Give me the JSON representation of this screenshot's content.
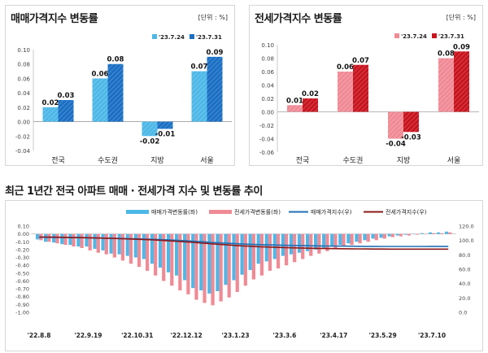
{
  "charts": {
    "sale": {
      "title": "매매가격지수 변동률",
      "unit": "[단위 : %]"
    },
    "jeonse": {
      "title": "전세가격지수 변동률",
      "unit": "[단위 : %]"
    },
    "trend": {
      "title": "최근 1년간 전국 아파트 매매 · 전세가격 지수 및 변동률 추이"
    }
  },
  "colors": {
    "sale_prev": "#4db8e8",
    "sale_curr": "#1a6fc4",
    "jeonse_prev": "#f08a95",
    "jeonse_curr": "#c8141e",
    "sale_index": "#1f6fb5",
    "jeonse_index": "#8b1a1a"
  },
  "chart_data": [
    {
      "type": "bar",
      "title": "매매가격지수 변동률",
      "categories": [
        "전국",
        "수도권",
        "지방",
        "서울"
      ],
      "series": [
        {
          "name": "'23.7.24",
          "values": [
            0.02,
            0.06,
            -0.02,
            0.07
          ]
        },
        {
          "name": "'23.7.31",
          "values": [
            0.03,
            0.08,
            -0.01,
            0.09
          ]
        }
      ],
      "ylim": [
        -0.04,
        0.1
      ],
      "yticks": [
        "-0.04",
        "-0.02",
        "0.00",
        "0.02",
        "0.04",
        "0.06",
        "0.08",
        "0.10"
      ],
      "data_labels": [
        [
          "0.02",
          "0.06",
          "-0.02",
          "0.07"
        ],
        [
          "0.03",
          "0.08",
          "-0.01",
          "0.09"
        ]
      ],
      "legend": "top-right"
    },
    {
      "type": "bar",
      "title": "전세가격지수 변동률",
      "categories": [
        "전국",
        "수도권",
        "지방",
        "서울"
      ],
      "series": [
        {
          "name": "'23.7.24",
          "values": [
            0.01,
            0.06,
            -0.04,
            0.08
          ]
        },
        {
          "name": "'23.7.31",
          "values": [
            0.02,
            0.07,
            -0.03,
            0.09
          ]
        }
      ],
      "ylim": [
        -0.06,
        0.1
      ],
      "yticks": [
        "-0.06",
        "-0.04",
        "-0.02",
        "0.00",
        "0.02",
        "0.04",
        "0.06",
        "0.08",
        "0.10"
      ],
      "data_labels": [
        [
          "0.01",
          "0.06",
          "-0.04",
          "0.08"
        ],
        [
          "0.02",
          "0.07",
          "-0.03",
          "0.09"
        ]
      ],
      "legend": "top-right"
    },
    {
      "type": "bar",
      "title": "최근 1년간 전국 아파트 매매 · 전세가격 지수 및 변동률 추이",
      "legend_items": [
        "매매가격변동률(좌)",
        "전세가격변동률(좌)",
        "매매가격지수(우)",
        "전세가격지수(우)"
      ],
      "ylim_left": [
        -1.0,
        0.1
      ],
      "yticks_left": [
        "-1.00",
        "-0.90",
        "-0.80",
        "-0.70",
        "-0.60",
        "-0.50",
        "-0.40",
        "-0.30",
        "-0.20",
        "-0.10",
        "0.00",
        "0.10"
      ],
      "ylim_right": [
        0,
        120
      ],
      "yticks_right": [
        "0.0",
        "20.0",
        "40.0",
        "60.0",
        "80.0",
        "100.0",
        "120.0"
      ],
      "xticks": [
        "'22.8.8",
        "'22.9.19",
        "'22.10.31",
        "'22.12.12",
        "'23.1.23",
        "'23.3.6",
        "'23.4.17",
        "'23.5.29",
        "'23.7.10"
      ],
      "sale_change": [
        -0.07,
        -0.1,
        -0.11,
        -0.13,
        -0.14,
        -0.16,
        -0.16,
        -0.19,
        -0.21,
        -0.25,
        -0.26,
        -0.28,
        -0.3,
        -0.32,
        -0.38,
        -0.43,
        -0.49,
        -0.53,
        -0.59,
        -0.69,
        -0.72,
        -0.76,
        -0.73,
        -0.65,
        -0.59,
        -0.52,
        -0.46,
        -0.38,
        -0.35,
        -0.32,
        -0.28,
        -0.26,
        -0.24,
        -0.22,
        -0.2,
        -0.18,
        -0.16,
        -0.14,
        -0.12,
        -0.1,
        -0.08,
        -0.06,
        -0.05,
        -0.03,
        -0.02,
        -0.01,
        0.0,
        0.01,
        0.02,
        0.02,
        0.03
      ],
      "jeonse_change": [
        -0.08,
        -0.1,
        -0.12,
        -0.14,
        -0.16,
        -0.18,
        -0.21,
        -0.24,
        -0.26,
        -0.3,
        -0.34,
        -0.38,
        -0.42,
        -0.47,
        -0.53,
        -0.6,
        -0.66,
        -0.72,
        -0.77,
        -0.84,
        -0.88,
        -0.91,
        -0.86,
        -0.81,
        -0.74,
        -0.66,
        -0.58,
        -0.53,
        -0.47,
        -0.44,
        -0.4,
        -0.36,
        -0.32,
        -0.28,
        -0.25,
        -0.22,
        -0.19,
        -0.16,
        -0.14,
        -0.12,
        -0.1,
        -0.08,
        -0.06,
        -0.04,
        -0.03,
        -0.02,
        -0.01,
        0.0,
        0.01,
        0.01,
        0.02
      ],
      "sale_index": [
        104.5,
        104.4,
        104.3,
        104.2,
        104.0,
        103.9,
        103.7,
        103.5,
        103.3,
        103.0,
        102.8,
        102.5,
        102.2,
        101.9,
        101.5,
        101.1,
        100.6,
        100.1,
        99.5,
        98.8,
        98.1,
        97.4,
        96.7,
        96.1,
        95.5,
        95.0,
        94.6,
        94.2,
        93.9,
        93.6,
        93.3,
        93.1,
        92.9,
        92.7,
        92.5,
        92.3,
        92.2,
        92.1,
        92.0,
        91.9,
        91.8,
        91.8,
        91.7,
        91.7,
        91.7,
        91.7,
        91.7,
        91.7,
        91.8,
        91.8,
        91.8
      ],
      "jeonse_index": [
        104.8,
        104.7,
        104.6,
        104.4,
        104.2,
        104.0,
        103.8,
        103.5,
        103.2,
        102.9,
        102.5,
        102.1,
        101.7,
        101.2,
        100.7,
        100.1,
        99.4,
        98.7,
        98.0,
        97.2,
        96.3,
        95.4,
        94.6,
        93.8,
        93.1,
        92.4,
        91.9,
        91.3,
        90.9,
        90.5,
        90.1,
        89.8,
        89.5,
        89.2,
        89.0,
        88.8,
        88.6,
        88.5,
        88.4,
        88.3,
        88.2,
        88.1,
        88.1,
        88.0,
        88.0,
        88.0,
        88.0,
        88.0,
        88.0,
        88.0,
        88.0
      ]
    }
  ]
}
